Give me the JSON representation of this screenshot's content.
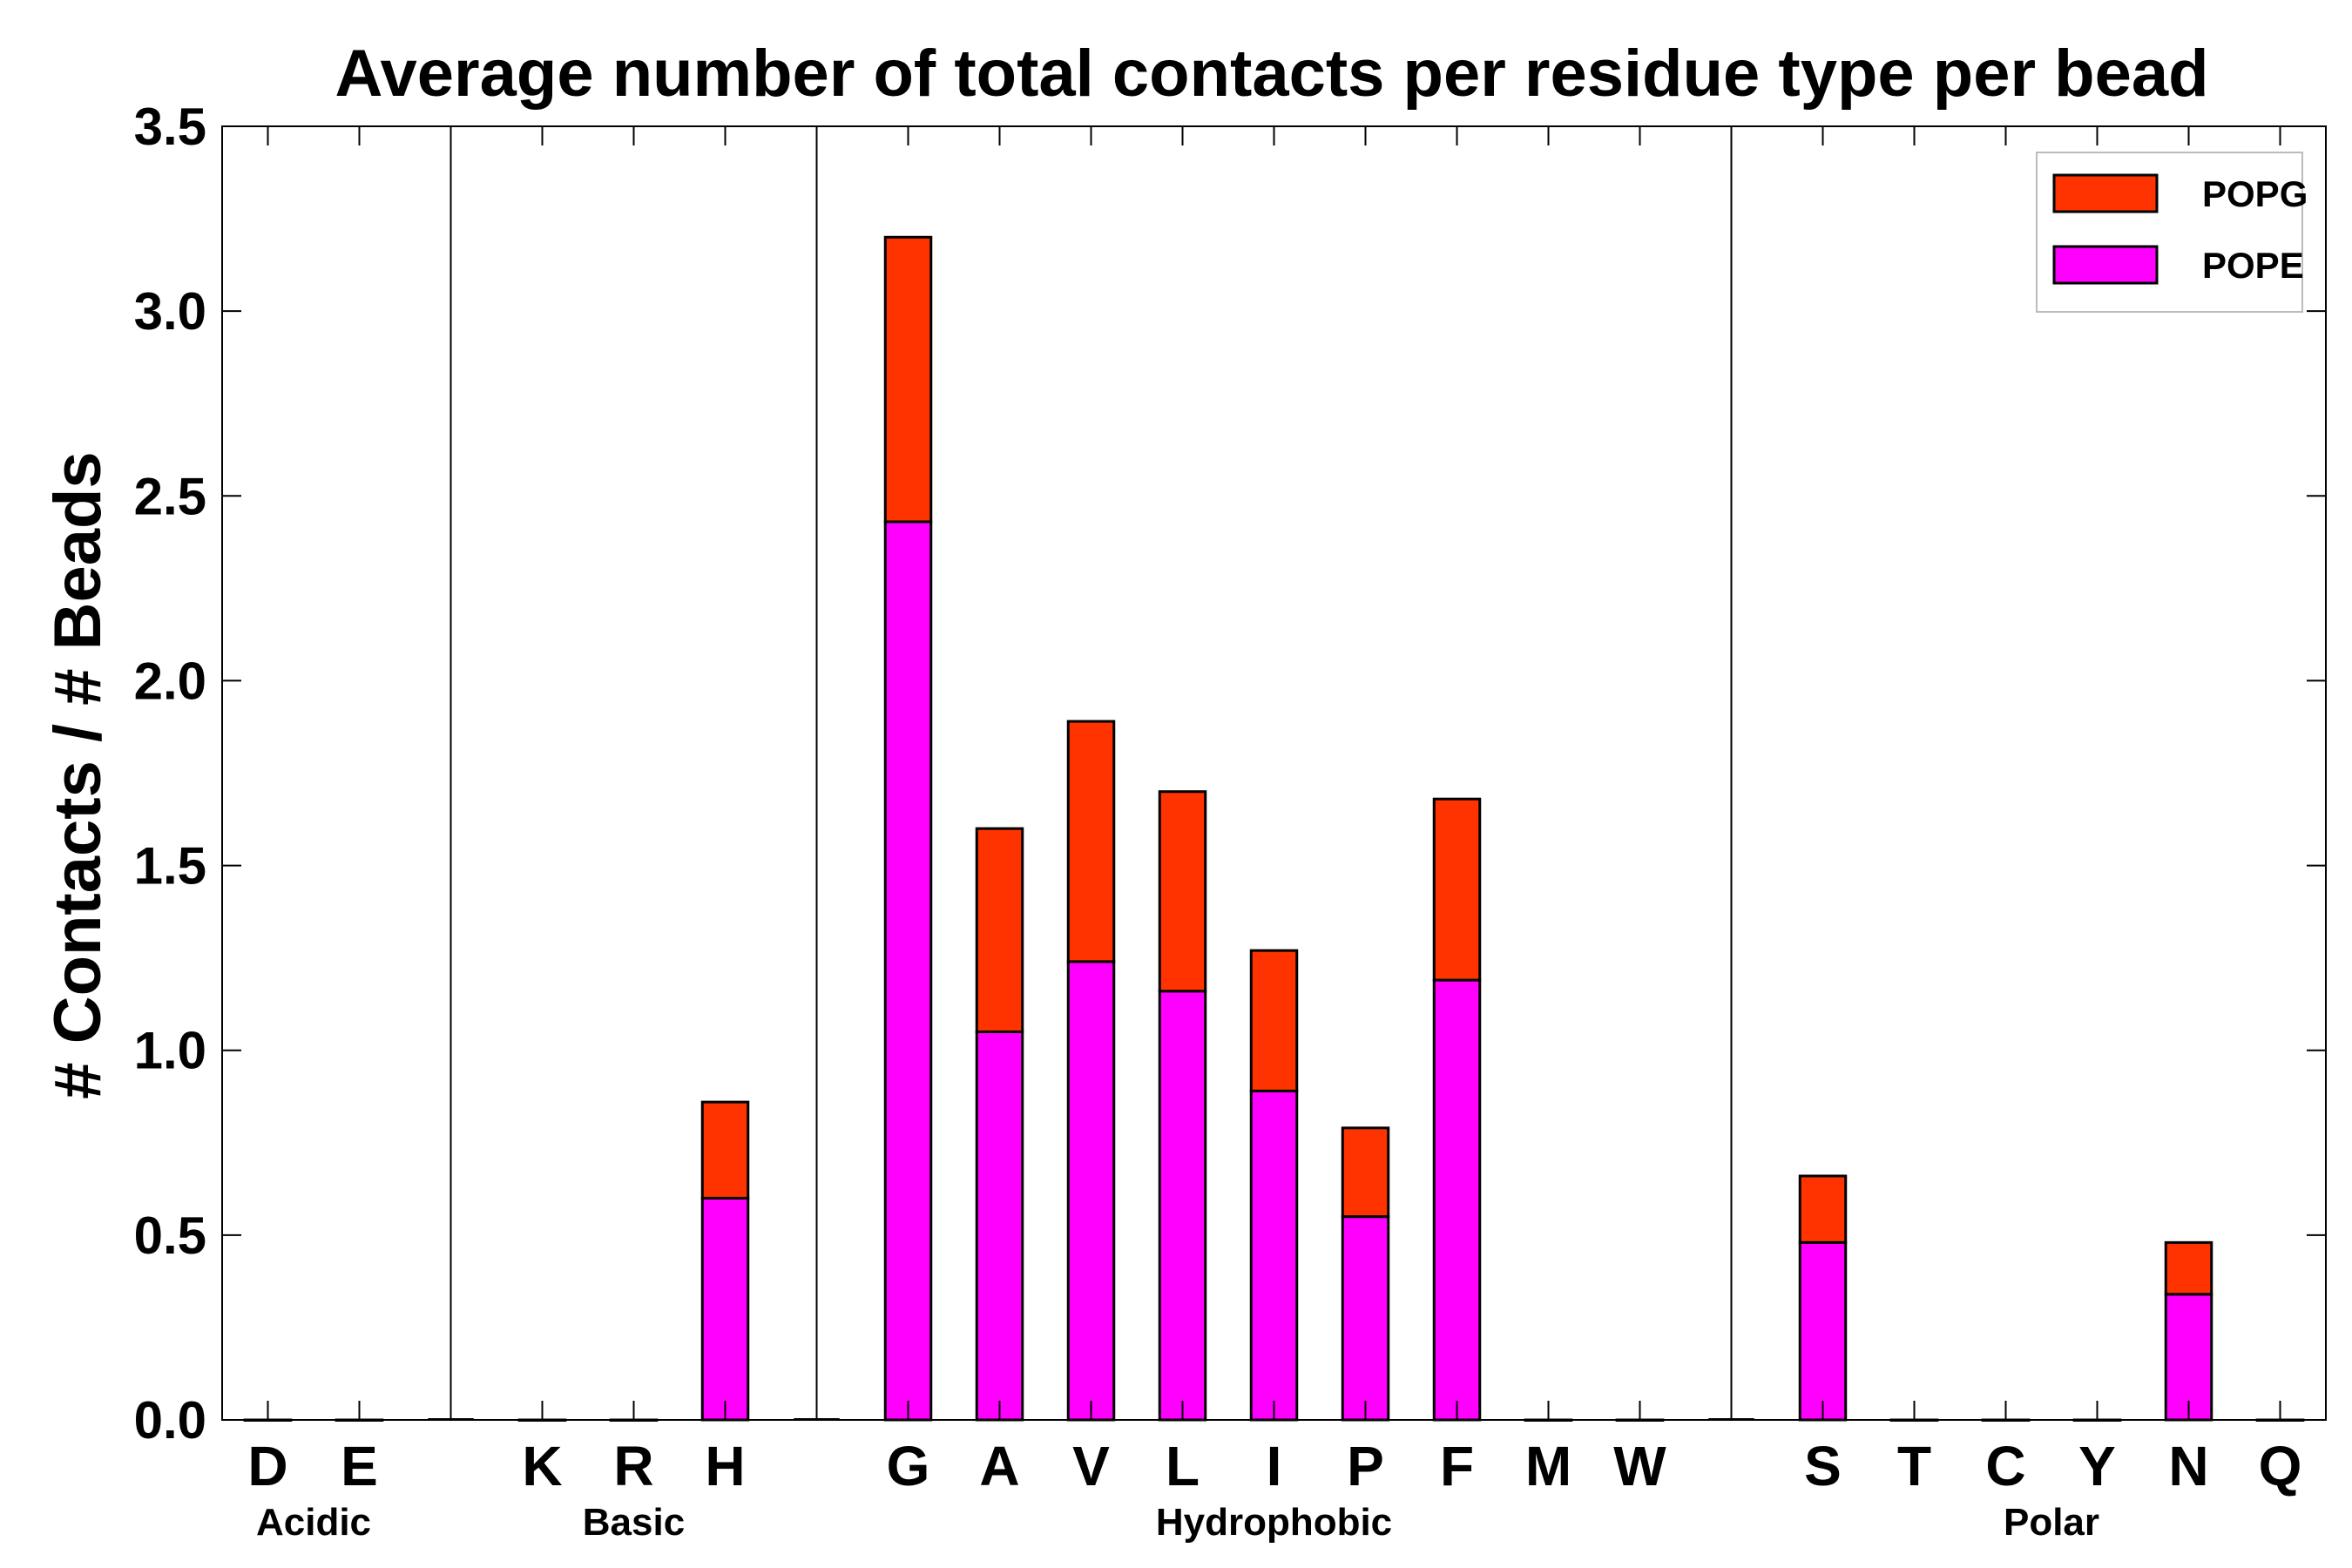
{
  "chart_data": {
    "type": "bar",
    "stacked": true,
    "title": "Average number of total contacts per residue type per bead",
    "xlabel": "",
    "ylabel": "# Contacts / # Beads",
    "ylim": [
      0,
      3.5
    ],
    "yticks": [
      "0.0",
      "0.5",
      "1.0",
      "1.5",
      "2.0",
      "2.5",
      "3.0",
      "3.5"
    ],
    "categories": [
      "D",
      "E",
      "",
      "K",
      "R",
      "H",
      "",
      "G",
      "A",
      "V",
      "L",
      "I",
      "P",
      "F",
      "M",
      "W",
      "",
      "S",
      "T",
      "C",
      "Y",
      "N",
      "Q"
    ],
    "groups": [
      {
        "name": "Acidic",
        "start": 0,
        "end": 1
      },
      {
        "name": "Basic",
        "start": 3,
        "end": 5
      },
      {
        "name": "Hydrophobic",
        "start": 7,
        "end": 15
      },
      {
        "name": "Polar",
        "start": 17,
        "end": 22
      }
    ],
    "separators_after": [
      2,
      6,
      16
    ],
    "series": [
      {
        "name": "POPE",
        "color": "#ff00ff",
        "values": [
          0,
          0,
          0,
          0,
          0,
          0.6,
          0,
          2.43,
          1.05,
          1.24,
          1.16,
          0.89,
          0.55,
          1.19,
          0,
          0,
          0,
          0.48,
          0,
          0,
          0,
          0.34,
          0
        ]
      },
      {
        "name": "POPG",
        "color": "#ff3300",
        "values": [
          0,
          0,
          0,
          0,
          0,
          0.26,
          0,
          0.77,
          0.55,
          0.65,
          0.54,
          0.38,
          0.24,
          0.49,
          0,
          0,
          0,
          0.18,
          0,
          0,
          0,
          0.14,
          0
        ]
      }
    ],
    "legend": {
      "position": "top-right",
      "order": [
        "POPG",
        "POPE"
      ]
    },
    "grid": false
  }
}
